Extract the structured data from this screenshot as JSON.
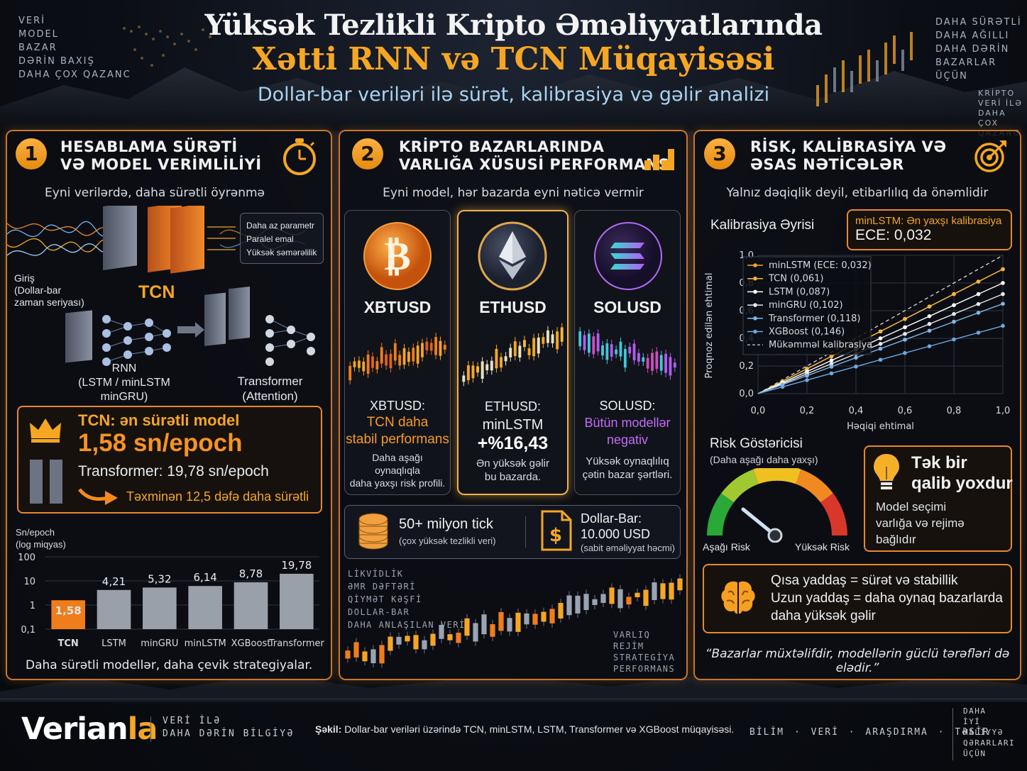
{
  "header": {
    "title_line1": "Yüksək Tezlikli Kripto Əməliyyatlarında",
    "title_line2": "Xətti RNN və TCN Müqayisəsi",
    "subtitle": "Dollar-bar veriləri ilə sürət, kalibrasiya və gəlir analizi",
    "left_corner": [
      "VERİ",
      "MODEL",
      "BAZAR",
      "DƏRİN BAXIŞ",
      "DAHA ÇOX QAZANC"
    ],
    "right_corner": [
      "DAHA SÜRƏTLİ",
      "DAHA AĞILLI",
      "DAHA DƏRİN",
      "BAZARLAR ÜÇÜN"
    ],
    "right_corner_small": [
      "KRİPTO",
      "VERİ İLƏ",
      "DAHA ÇOX",
      "QAZANC"
    ]
  },
  "panel1": {
    "number": "1",
    "title": [
      "HESABLAMA SÜRƏTİ",
      "VƏ MODEL VERİMLİLİYİ"
    ],
    "icon": "stopwatch-icon",
    "subtitle": "Eyni verilərdə, daha sürətli öyrənmə",
    "tcn_label": "TCN",
    "benefits": [
      "Daha az parametr",
      "Paralel emal",
      "Yüksək səmərəlilik"
    ],
    "input_label": [
      "Giriş",
      "(Dollar-bar",
      "zaman seriyası)"
    ],
    "rnn_label": [
      "RNN",
      "(LSTM / minLSTM",
      "minGRU)"
    ],
    "transformer_label": [
      "Transformer",
      "(Attention)"
    ],
    "highlight": {
      "title": "TCN: ən sürətli model",
      "value": "1,58 sn/epoch",
      "compare": "Transformer: 19,78 sn/epoch",
      "note": "Təxminən 12,5 dəfə daha sürətli"
    },
    "footer": "Daha sürətli modellər, daha çevik strategiyalar."
  },
  "chart_data": {
    "type": "bar",
    "ylabel": [
      "Sn/epoch",
      "(log miqyas)"
    ],
    "yscale": "log",
    "ylim": [
      0.1,
      100
    ],
    "yticks": [
      "100",
      "10",
      "1",
      "0,1"
    ],
    "categories": [
      "TCN",
      "LSTM",
      "minGRU",
      "minLSTM",
      "XGBoost",
      "Transformer"
    ],
    "values": [
      1.58,
      4.21,
      5.32,
      6.14,
      8.78,
      19.78
    ],
    "value_labels": [
      "1,58",
      "4,21",
      "5,32",
      "6,14",
      "8,78",
      "19,78"
    ],
    "highlight_color": "#f07d1a",
    "bar_color": "#9aa0aa"
  },
  "panel2": {
    "number": "2",
    "title": [
      "KRİPTO BAZARLARINDA",
      "VARLIĞA XÜSUSİ PERFORMANS"
    ],
    "icon": "bar-chart-icon",
    "subtitle": "Eyni model, hər bazarda eyni nəticə vermir",
    "cards": [
      {
        "ticker": "XBTUSD",
        "head": "XBTUSD:",
        "result": [
          "TCN daha",
          "stabil performans"
        ],
        "desc": [
          "Daha aşağı",
          "oynaqlıqla",
          "daha yaxşı risk profili."
        ],
        "color": "#f59b23"
      },
      {
        "ticker": "ETHUSD",
        "head": "ETHUSD:",
        "result": [
          "minLSTM",
          "+%16,43"
        ],
        "desc": [
          "Ən yüksək gəlir",
          "bu bazarda."
        ],
        "color": "#ffffff"
      },
      {
        "ticker": "SOLUSD",
        "head": "SOLUSD:",
        "result": [
          "Bütün modellər",
          "negativ"
        ],
        "desc": [
          "Yüksək oynaqlılıq",
          "çətin bazar şərtləri."
        ],
        "color": "#c26cf5"
      }
    ],
    "info1": {
      "title": "50+ milyon tick",
      "sub": "(çox yüksək tezlikli veri)"
    },
    "info2": {
      "title": "Dollar-Bar:",
      "value": "10.000 USD",
      "sub": "(sabit əməliyyat həcmi)"
    },
    "bottom_left": [
      "LİKVİDLİK",
      "ƏMR DƏFTƏRİ",
      "QİYMƏT KƏŞFİ",
      "DOLLAR-BAR",
      "DAHA ANLAŞILAN VERİ"
    ],
    "bottom_right": [
      "VARLIQ",
      "REJİM",
      "STRATEGİYA",
      "PERFORMANS"
    ]
  },
  "panel3": {
    "number": "3",
    "title": [
      "RİSK, KALİBRASİYA VƏ",
      "ƏSAS NƏTİCƏLƏR"
    ],
    "icon": "target-icon",
    "subtitle": "Yalnız dəqiqlik deyil, etibarlılıq da önəmlidir",
    "calib_title": "Kalibrasiya Əyrisi",
    "calib_box": {
      "line1": "minLSTM: Ən yaxşı kalibrasiya",
      "line2": "ECE: 0,032"
    },
    "calib_ylabel": "Proqnoz edilən ehtimal",
    "calib_xlabel": "Həqiqi ehtimal",
    "calib_ticks": [
      "0,0",
      "0,2",
      "0,4",
      "0,6",
      "0,8",
      "1,0"
    ],
    "calib_series": [
      {
        "name": "minLSTM (ECE: 0,032)",
        "color": "#f5a623",
        "end": 0.9
      },
      {
        "name": "TCN (0,061)",
        "color": "#f5b53a",
        "end": 0.9
      },
      {
        "name": "LSTM (0,087)",
        "color": "#ffffff",
        "end": 0.8
      },
      {
        "name": "minGRU (0,102)",
        "color": "#e6e9ee",
        "end": 0.72
      },
      {
        "name": "Transformer (0,118)",
        "color": "#7fb8e8",
        "end": 0.65
      },
      {
        "name": "XGBoost (0,146)",
        "color": "#6aa9e0",
        "end": 0.49
      }
    ],
    "calib_perfect": "Mükəmməl kalibrasiya",
    "risk_title": "Risk Göstəricisi",
    "risk_sub": "(Daha aşağı daha yaxşı)",
    "risk_low": "Aşağı Risk",
    "risk_high": "Yüksək Risk",
    "winner": {
      "title": [
        "Tək bir",
        "qalib yoxdur"
      ],
      "desc": [
        "Model seçimi",
        "varlığa və rejimə",
        "bağlıdır"
      ]
    },
    "memory": [
      "Qısa yaddaş = sürət və stabillik",
      "Uzun yaddaş = daha oynaq bazarlarda",
      "daha yüksək gəlir"
    ],
    "quote": "“Bazarlar müxtəlifdir, modellərin güclü tərəfləri də elədir.”"
  },
  "footer": {
    "brand_a": "Verian",
    "brand_b": "la",
    "tag": [
      "VERİ İLƏ",
      "DAHA DƏRİN BİLGİYƏ"
    ],
    "caption_bold": "Şəkil:",
    "caption": "Dollar-bar veriləri üzərində TCN, minLSTM, LSTM, Transformer və XGBoost müqayisəsi.",
    "links": [
      "BİLİM",
      "·",
      "VERİ",
      "·",
      "ARAŞDIRMA",
      "·",
      "TƏSİR"
    ],
    "right": [
      "DAHA",
      "İYİ",
      "MALİYYƏ",
      "QƏRARLARI",
      "ÜÇÜN"
    ]
  }
}
